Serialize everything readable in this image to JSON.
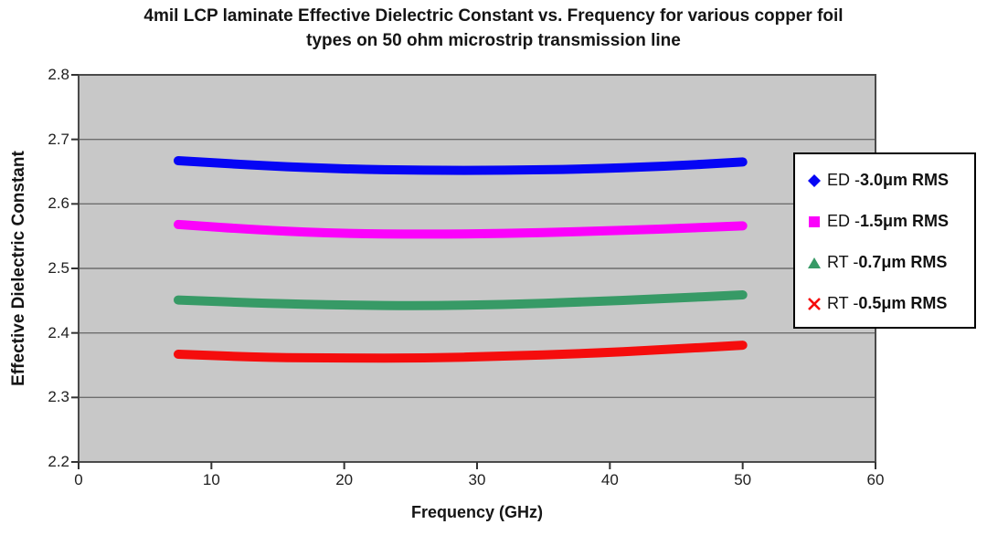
{
  "title": {
    "line1": "4mil LCP laminate Effective Dielectric Constant vs. Frequency for various copper foil",
    "line2": "types on 50 ohm microstrip transmission line"
  },
  "axes": {
    "x_label": "Frequency (GHz)",
    "y_label": "Effective Dielectric Constant"
  },
  "chart_data": {
    "type": "line",
    "title": "4mil LCP laminate Effective Dielectric Constant vs. Frequency for various copper foil types on 50 ohm microstrip transmission line",
    "xlabel": "Frequency (GHz)",
    "ylabel": "Effective Dielectric Constant",
    "xlim": [
      0,
      60
    ],
    "ylim": [
      2.2,
      2.8
    ],
    "x_ticks": [
      0,
      10,
      20,
      30,
      40,
      50,
      60
    ],
    "y_ticks": [
      2.2,
      2.3,
      2.4,
      2.5,
      2.6,
      2.7,
      2.8
    ],
    "grid": true,
    "legend_position": "right",
    "plot_bg_color": "#c8c8c8",
    "gridline_color": "#6e6e6e",
    "axis_border_color": "#4a4a4a",
    "x": [
      7.5,
      14,
      20,
      26,
      32,
      38,
      44,
      50
    ],
    "series": [
      {
        "id": "ed-3-0um-rms",
        "name": "ED - 3.0μm RMS",
        "legend_prefix": "ED - ",
        "legend_bold": "3.0μm RMS",
        "marker": "diamond",
        "color": "#0505f5",
        "values": [
          2.667,
          2.659,
          2.654,
          2.652,
          2.652,
          2.654,
          2.658,
          2.665
        ]
      },
      {
        "id": "ed-1-5um-rms",
        "name": "ED - 1.5μm RMS",
        "legend_prefix": "ED - ",
        "legend_bold": "1.5μm RMS",
        "marker": "square",
        "color": "#fb02fb",
        "values": [
          2.568,
          2.559,
          2.554,
          2.553,
          2.554,
          2.557,
          2.561,
          2.566
        ]
      },
      {
        "id": "rt-0-7um-rms",
        "name": "RT - 0.7μm RMS",
        "legend_prefix": "RT - ",
        "legend_bold": "0.7μm RMS",
        "marker": "triangle",
        "color": "#379a66",
        "values": [
          2.451,
          2.446,
          2.443,
          2.442,
          2.444,
          2.448,
          2.453,
          2.459
        ]
      },
      {
        "id": "rt-0-5um-rms",
        "name": "RT - 0.5μm RMS",
        "legend_prefix": "RT - ",
        "legend_bold": "0.5μm RMS",
        "marker": "x",
        "color": "#f50d0d",
        "values": [
          2.367,
          2.362,
          2.361,
          2.361,
          2.364,
          2.368,
          2.374,
          2.381
        ]
      }
    ]
  }
}
